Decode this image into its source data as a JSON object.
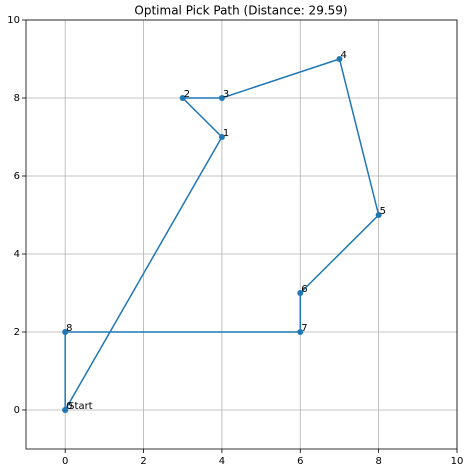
{
  "chart_data": {
    "type": "line",
    "title": "Optimal Pick Path (Distance: 29.59)",
    "x": [
      0,
      4,
      3,
      4,
      7,
      8,
      6,
      6,
      0,
      0
    ],
    "series": [
      {
        "color": "#1f77b4",
        "values": [
          0,
          7,
          8,
          8,
          9,
          5,
          3,
          2,
          2,
          0
        ],
        "point_labels": [
          "0",
          "1",
          "2",
          "3",
          "4",
          "5",
          "6",
          "7",
          "8",
          null
        ]
      }
    ],
    "annotations": [
      {
        "text": "Start",
        "x": 0,
        "y": 0
      }
    ],
    "xlim": [
      -1,
      10
    ],
    "ylim": [
      -1,
      10
    ],
    "xticks": [
      0,
      2,
      4,
      6,
      8,
      10
    ],
    "yticks": [
      0,
      2,
      4,
      6,
      8,
      10
    ],
    "grid": true
  }
}
